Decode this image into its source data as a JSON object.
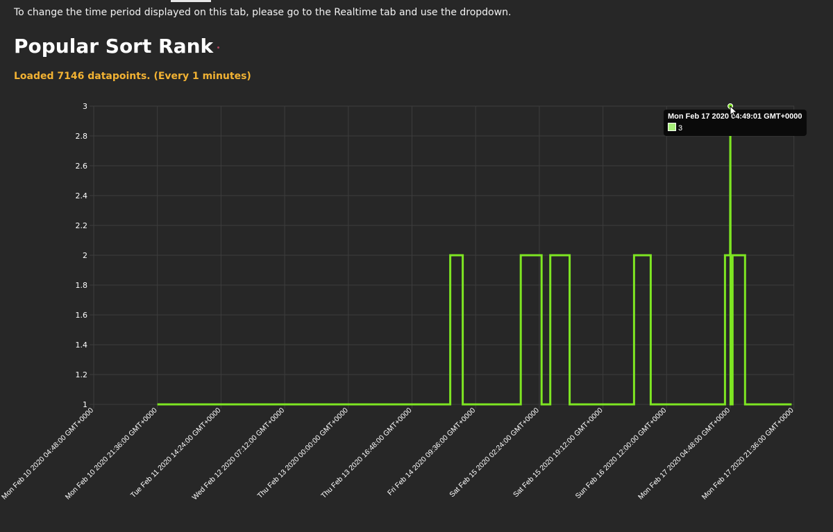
{
  "header": {
    "info_text": "To change the time period displayed on this tab, please go to the Realtime tab and use the dropdown.",
    "title": "Popular Sort Rank",
    "status_text": "Loaded 7146 datapoints. (Every 1 minutes)"
  },
  "colors": {
    "background": "#272727",
    "series_line": "#7ee622",
    "grid": "#3d3d3d",
    "status": "#f2b233",
    "tooltip_swatch": "#a8f07a"
  },
  "tooltip": {
    "title": "Mon Feb 17 2020 04:49:01 GMT+0000",
    "value": "3"
  },
  "chart_data": {
    "type": "line",
    "title": "",
    "xlabel": "",
    "ylabel": "",
    "ylim": [
      1,
      3
    ],
    "y_ticks": [
      "1",
      "1.2",
      "1.4",
      "1.6",
      "1.8",
      "2",
      "2.2",
      "2.4",
      "2.6",
      "2.8",
      "3"
    ],
    "x_ticks": [
      "Mon Feb 10 2020 04:48:00 GMT+0000",
      "Mon Feb 10 2020 21:36:00 GMT+0000",
      "Tue Feb 11 2020 14:24:00 GMT+0000",
      "Wed Feb 12 2020 07:12:00 GMT+0000",
      "Thu Feb 13 2020 00:00:00 GMT+0000",
      "Thu Feb 13 2020 16:48:00 GMT+0000",
      "Fri Feb 14 2020 09:36:00 GMT+0000",
      "Sat Feb 15 2020 02:24:00 GMT+0000",
      "Sat Feb 15 2020 19:12:00 GMT+0000",
      "Sun Feb 16 2020 12:00:00 GMT+0000",
      "Mon Feb 17 2020 04:48:00 GMT+0000",
      "Mon Feb 17 2020 21:36:00 GMT+0000"
    ],
    "grid": true,
    "series": [
      {
        "x": [
          "2020-02-10 21:36",
          "2020-02-14 02:54",
          "2020-02-14 02:54",
          "2020-02-14 06:12",
          "2020-02-14 06:12",
          "2020-02-14 21:30",
          "2020-02-14 21:30",
          "2020-02-15 03:00",
          "2020-02-15 03:00",
          "2020-02-15 05:18",
          "2020-02-15 05:18",
          "2020-02-15 10:24",
          "2020-02-15 10:24",
          "2020-02-16 03:24",
          "2020-02-16 03:24",
          "2020-02-16 07:48",
          "2020-02-16 07:48",
          "2020-02-17 03:24",
          "2020-02-17 03:24",
          "2020-02-17 04:46",
          "2020-02-17 04:46",
          "2020-02-17 04:49",
          "2020-02-17 04:52",
          "2020-02-17 04:52",
          "2020-02-17 05:24",
          "2020-02-17 05:24",
          "2020-02-17 06:18",
          "2020-02-17 06:18",
          "2020-02-17 08:42",
          "2020-02-17 08:42",
          "2020-02-17 21:00"
        ],
        "y": [
          1,
          1,
          2,
          2,
          1,
          1,
          2,
          2,
          1,
          1,
          2,
          2,
          1,
          1,
          2,
          2,
          1,
          1,
          2,
          2,
          2,
          3,
          2,
          1,
          1,
          2,
          2,
          2,
          2,
          1,
          1
        ]
      }
    ]
  }
}
